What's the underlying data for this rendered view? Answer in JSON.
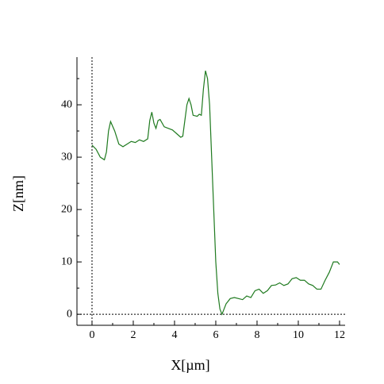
{
  "chart_data": {
    "type": "line",
    "xlabel": "X[µm]",
    "ylabel": "Z[nm]",
    "x": [
      0,
      0.2,
      0.4,
      0.6,
      0.7,
      0.8,
      0.9,
      1.1,
      1.3,
      1.5,
      1.7,
      1.9,
      2.1,
      2.3,
      2.5,
      2.7,
      2.8,
      2.9,
      3.0,
      3.1,
      3.2,
      3.3,
      3.5,
      3.7,
      3.9,
      4.1,
      4.3,
      4.4,
      4.5,
      4.6,
      4.7,
      4.8,
      4.9,
      5.1,
      5.2,
      5.3,
      5.4,
      5.5,
      5.6,
      5.7,
      5.8,
      5.9,
      6.0,
      6.1,
      6.2,
      6.3,
      6.4,
      6.5,
      6.7,
      6.9,
      7.1,
      7.3,
      7.5,
      7.7,
      7.9,
      8.1,
      8.3,
      8.5,
      8.7,
      8.9,
      9.1,
      9.3,
      9.5,
      9.7,
      9.9,
      10.1,
      10.3,
      10.5,
      10.7,
      10.9,
      11.1,
      11.3,
      11.5,
      11.7,
      11.9,
      12.0
    ],
    "series": [
      {
        "color": "#1f7a1f",
        "values": [
          32.3,
          31.5,
          30,
          29.5,
          31,
          35,
          36.8,
          35,
          32.5,
          32,
          32.5,
          33,
          32.8,
          33.3,
          33,
          33.5,
          37,
          38.6,
          36.5,
          35.5,
          37,
          37.2,
          35.8,
          35.5,
          35.2,
          34.5,
          33.8,
          34,
          37,
          40,
          41.2,
          40,
          38,
          37.8,
          38.2,
          38,
          43,
          46.5,
          45,
          40,
          30,
          20,
          10,
          4,
          1,
          0,
          1,
          2,
          3,
          3.2,
          3,
          2.8,
          3.5,
          3.2,
          4.5,
          4.8,
          4,
          4.5,
          5.5,
          5.6,
          6,
          5.5,
          5.8,
          6.8,
          7,
          6.5,
          6.5,
          5.8,
          5.5,
          4.8,
          4.8,
          6.5,
          8,
          10,
          10,
          9.5
        ]
      }
    ],
    "xlim": [
      -0.73,
      12.27
    ],
    "ylim": [
      -2.1,
      49.1
    ],
    "xticks": [
      0,
      2,
      4,
      6,
      8,
      10,
      12
    ],
    "yticks": [
      0,
      10,
      20,
      30,
      40
    ],
    "xminorticks": [
      1,
      3,
      5,
      7,
      9,
      11
    ],
    "yminorticks": [
      5,
      15,
      25,
      35,
      45
    ]
  }
}
